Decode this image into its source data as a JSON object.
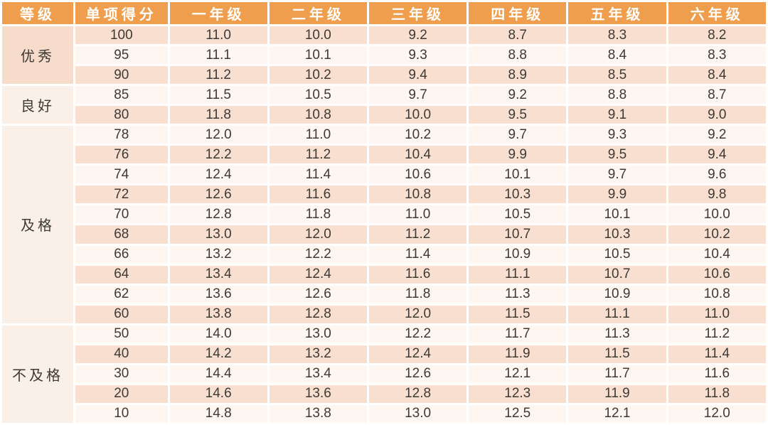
{
  "colors": {
    "header_bg": "#EF9E4D",
    "header_text": "#FFFFFF",
    "row_peach": "#F8DFD0",
    "row_light": "#FDF6F1",
    "group_peach": "#F7DCCC",
    "group_cream": "#FBF0E8",
    "text": "#3D3A36",
    "grid": "#FFFFFF"
  },
  "chart_data": {
    "type": "table",
    "headers": [
      "等级",
      "单项得分",
      "一年级",
      "二年级",
      "三年级",
      "四年级",
      "五年级",
      "六年级"
    ],
    "groups": [
      {
        "grade": "优秀",
        "rows": [
          [
            "100",
            "11.0",
            "10.0",
            "9.2",
            "8.7",
            "8.3",
            "8.2"
          ],
          [
            "95",
            "11.1",
            "10.1",
            "9.3",
            "8.8",
            "8.4",
            "8.3"
          ],
          [
            "90",
            "11.2",
            "10.2",
            "9.4",
            "8.9",
            "8.5",
            "8.4"
          ]
        ]
      },
      {
        "grade": "良好",
        "rows": [
          [
            "85",
            "11.5",
            "10.5",
            "9.7",
            "9.2",
            "8.8",
            "8.7"
          ],
          [
            "80",
            "11.8",
            "10.8",
            "10.0",
            "9.5",
            "9.1",
            "9.0"
          ]
        ]
      },
      {
        "grade": "及格",
        "rows": [
          [
            "78",
            "12.0",
            "11.0",
            "10.2",
            "9.7",
            "9.3",
            "9.2"
          ],
          [
            "76",
            "12.2",
            "11.2",
            "10.4",
            "9.9",
            "9.5",
            "9.4"
          ],
          [
            "74",
            "12.4",
            "11.4",
            "10.6",
            "10.1",
            "9.7",
            "9.6"
          ],
          [
            "72",
            "12.6",
            "11.6",
            "10.8",
            "10.3",
            "9.9",
            "9.8"
          ],
          [
            "70",
            "12.8",
            "11.8",
            "11.0",
            "10.5",
            "10.1",
            "10.0"
          ],
          [
            "68",
            "13.0",
            "12.0",
            "11.2",
            "10.7",
            "10.3",
            "10.2"
          ],
          [
            "66",
            "13.2",
            "12.2",
            "11.4",
            "10.9",
            "10.5",
            "10.4"
          ],
          [
            "64",
            "13.4",
            "12.4",
            "11.6",
            "11.1",
            "10.7",
            "10.6"
          ],
          [
            "62",
            "13.6",
            "12.6",
            "11.8",
            "11.3",
            "10.9",
            "10.8"
          ],
          [
            "60",
            "13.8",
            "12.8",
            "12.0",
            "11.5",
            "11.1",
            "11.0"
          ]
        ]
      },
      {
        "grade": "不及格",
        "rows": [
          [
            "50",
            "14.0",
            "13.0",
            "12.2",
            "11.7",
            "11.3",
            "11.2"
          ],
          [
            "40",
            "14.2",
            "13.2",
            "12.4",
            "11.9",
            "11.5",
            "11.4"
          ],
          [
            "30",
            "14.4",
            "13.4",
            "12.6",
            "12.1",
            "11.7",
            "11.6"
          ],
          [
            "20",
            "14.6",
            "13.6",
            "12.8",
            "12.3",
            "11.9",
            "11.8"
          ],
          [
            "10",
            "14.8",
            "13.8",
            "13.0",
            "12.5",
            "12.1",
            "12.0"
          ]
        ]
      }
    ]
  }
}
